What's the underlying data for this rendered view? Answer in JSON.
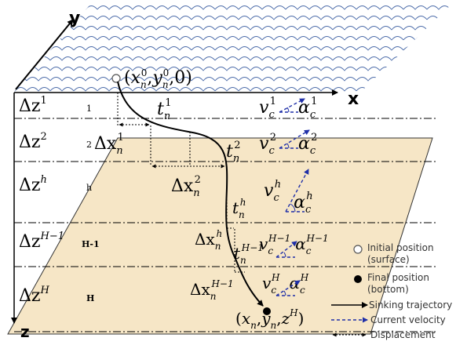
{
  "axes": {
    "x": "x",
    "y": "y",
    "z": "z"
  },
  "layers": [
    {
      "dz_base": "Δz",
      "dz_sup": "1",
      "index": "1"
    },
    {
      "dz_base": "Δz",
      "dz_sup": "2",
      "index": "2"
    },
    {
      "dz_base": "Δz",
      "dz_sup": "h",
      "index": "h"
    },
    {
      "dz_base": "Δz",
      "dz_sup": "H−1",
      "index": "H-1"
    },
    {
      "dz_base": "Δz",
      "dz_sup": "H",
      "index": "H"
    }
  ],
  "start_point": {
    "open": "(",
    "x": "x",
    "x_sub": "n",
    "x_sup": "0",
    "comma1": ",",
    "y": "y",
    "y_sub": "n",
    "y_sup": "0",
    "rest": ",0)"
  },
  "end_point": {
    "open": "(",
    "x": "x",
    "x_sub": "n",
    "comma1": ",",
    "y": "y",
    "y_sub": "n",
    "comma2": ",",
    "z": "z",
    "z_sup": "H",
    "close": ")"
  },
  "times": [
    {
      "base": "t",
      "sub": "n",
      "sup": "1"
    },
    {
      "base": "t",
      "sub": "n",
      "sup": "2"
    },
    {
      "base": "t",
      "sub": "n",
      "sup": "h"
    },
    {
      "base": "t",
      "sub": "n",
      "sup": "H−1"
    }
  ],
  "displacements": [
    {
      "base": "Δx",
      "sub": "n",
      "sup": "1"
    },
    {
      "base": "Δx",
      "sub": "n",
      "sup": "2"
    },
    {
      "base": "Δx",
      "sub": "n",
      "sup": "h"
    },
    {
      "base": "Δx",
      "sub": "n",
      "sup": "H−1"
    }
  ],
  "velocities": [
    {
      "v": "v",
      "v_sub": "c",
      "v_sup": "1",
      "a": "α",
      "a_sub": "c",
      "a_sup": "1"
    },
    {
      "v": "v",
      "v_sub": "c",
      "v_sup": "2",
      "a": "α",
      "a_sub": "c",
      "a_sup": "2"
    },
    {
      "v": "v",
      "v_sub": "c",
      "v_sup": "h",
      "a": "α",
      "a_sub": "c",
      "a_sup": "h"
    },
    {
      "v": "v",
      "v_sub": "c",
      "v_sup": "H−1",
      "a": "α",
      "a_sub": "c",
      "a_sup": "H−1"
    },
    {
      "v": "v",
      "v_sub": "c",
      "v_sup": "H",
      "a": "α",
      "a_sub": "c",
      "a_sup": "H"
    }
  ],
  "legend": {
    "initial_line1": "Initial position",
    "initial_line2": "(surface)",
    "final_line1": "Final position",
    "final_line2": "(bottom)",
    "trajectory": "Sinking trajectory",
    "current": "Current velocity",
    "displacement": "Displacement"
  },
  "colors": {
    "wave": "#4a6aa8",
    "bottom_fill": "#f6e6c6",
    "current_arrow": "#1f2fa8",
    "ink": "#000000"
  }
}
